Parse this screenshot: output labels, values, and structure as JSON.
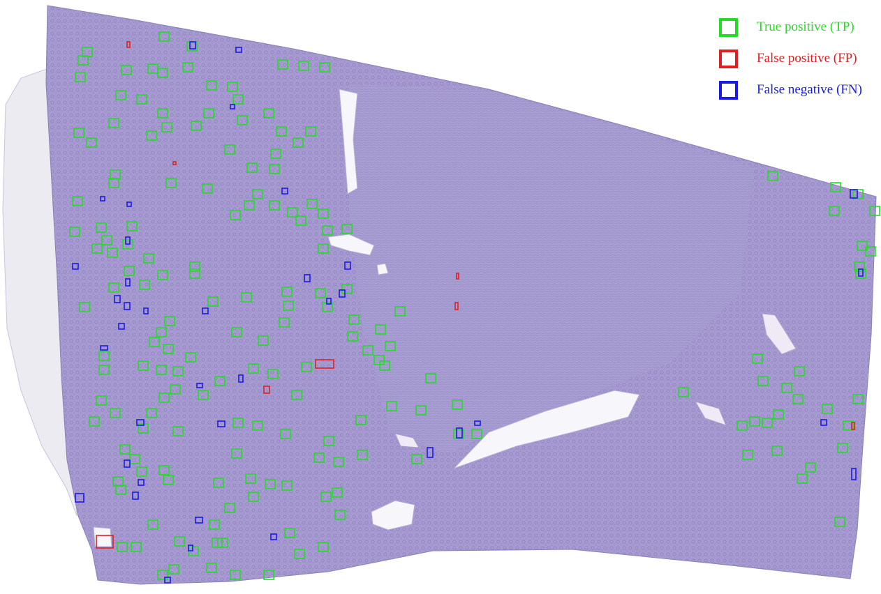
{
  "legend": {
    "items": [
      {
        "label": "True positive (TP)",
        "color": "#22dd22"
      },
      {
        "label": "False positive (FP)",
        "color": "#e02020"
      },
      {
        "label": "False negative (FN)",
        "color": "#1a1ae6"
      }
    ]
  },
  "colors": {
    "tissue": "#a59ad0",
    "tissue_dense": "#9b8cc6",
    "capsule": "#e8e6ee",
    "vessel": "#f6f4f8",
    "background": "#ffffff"
  }
}
